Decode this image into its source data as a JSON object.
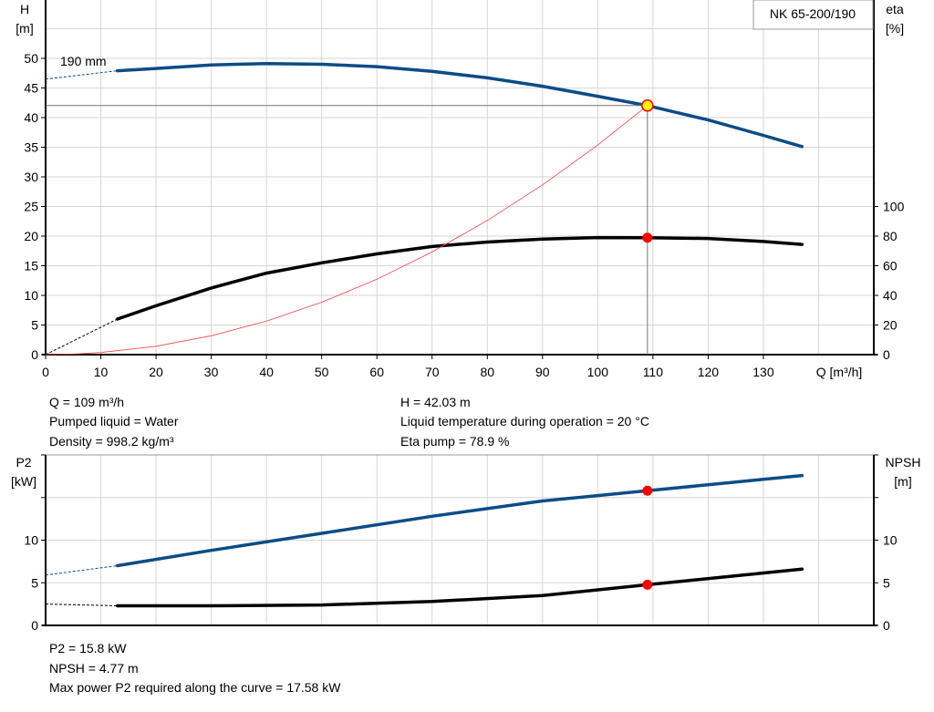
{
  "chart_data": [
    {
      "type": "line",
      "title": "NK 65-200/190",
      "xlabel": "Q [m³/h]",
      "ylabel": "H\n[m]",
      "y2label": "eta\n[%]",
      "xlim": [
        0,
        150
      ],
      "ylim": [
        0,
        60
      ],
      "y2lim": [
        0,
        240
      ],
      "x_ticks": [
        0,
        10,
        20,
        30,
        40,
        50,
        60,
        70,
        80,
        90,
        100,
        110,
        120,
        130
      ],
      "y_ticks": [
        0,
        5,
        10,
        15,
        20,
        25,
        30,
        35,
        40,
        45,
        50
      ],
      "y2_ticks": [
        0,
        20,
        40,
        60,
        80,
        100
      ],
      "grid": true,
      "annotation": "190 mm",
      "colors": {
        "head": "#0b4c86",
        "eta": "#000000",
        "system": "#ff4040",
        "point_fill": "#ffff00",
        "point_stroke": "#ff0000",
        "duty_lines": "#777777"
      },
      "series": [
        {
          "key": "head",
          "axis": "left",
          "x": [
            13,
            20,
            30,
            40,
            50,
            60,
            70,
            80,
            90,
            100,
            109,
            120,
            130,
            137
          ],
          "y": [
            47.9,
            48.3,
            48.9,
            49.1,
            49.0,
            48.6,
            47.8,
            46.7,
            45.3,
            43.6,
            42.03,
            39.6,
            37.0,
            35.1
          ],
          "dashed_x": [
            0,
            13
          ],
          "dashed_y": [
            46.5,
            47.9
          ]
        },
        {
          "key": "eta",
          "axis": "right",
          "x": [
            13,
            20,
            30,
            40,
            50,
            60,
            70,
            80,
            90,
            100,
            109,
            120,
            130,
            137
          ],
          "y": [
            24,
            33,
            45,
            55,
            62,
            68,
            73,
            76,
            78,
            79,
            78.9,
            78.4,
            76.4,
            74.4
          ],
          "dashed_x": [
            0,
            13
          ],
          "dashed_y": [
            0,
            24
          ]
        },
        {
          "key": "system",
          "axis": "left",
          "x": [
            0,
            5,
            10,
            20,
            30,
            40,
            50,
            60,
            70,
            80,
            90,
            100,
            109
          ],
          "y": [
            0,
            0.09,
            0.35,
            1.41,
            3.18,
            5.66,
            8.84,
            12.73,
            17.33,
            22.64,
            28.65,
            35.37,
            42.03
          ]
        }
      ],
      "duty_point": {
        "Q": 109,
        "H": 42.03,
        "eta": 78.9
      }
    },
    {
      "type": "line",
      "ylabel": "P2\n[kW]",
      "y2label": "NPSH\n[m]",
      "xlim": [
        0,
        150
      ],
      "ylim": [
        0,
        20
      ],
      "y_ticks": [
        0,
        5,
        10,
        15,
        20
      ],
      "y_tick_labels": [
        "0",
        "5",
        "10",
        "",
        ""
      ],
      "grid": true,
      "colors": {
        "p2": "#0b4c86",
        "npsh": "#000000",
        "point": "#ff0000"
      },
      "series": [
        {
          "key": "p2",
          "axis": "left",
          "x": [
            13,
            30,
            50,
            70,
            90,
            109,
            137
          ],
          "y": [
            7.0,
            8.8,
            10.8,
            12.8,
            14.6,
            15.8,
            17.58
          ],
          "dashed_x": [
            0,
            13
          ],
          "dashed_y": [
            5.9,
            7.0
          ]
        },
        {
          "key": "npsh",
          "axis": "right",
          "x": [
            13,
            30,
            50,
            70,
            90,
            109,
            137
          ],
          "y": [
            2.3,
            2.3,
            2.4,
            2.8,
            3.5,
            4.77,
            6.6
          ],
          "dashed_x": [
            0,
            13
          ],
          "dashed_y": [
            2.5,
            2.3
          ]
        }
      ],
      "duty_point": {
        "Q": 109,
        "P2": 15.8,
        "NPSH": 4.77
      }
    }
  ],
  "info_top": {
    "q": "Q = 109 m³/h",
    "liquid": "Pumped liquid = Water",
    "density": "Density = 998.2 kg/m³",
    "h": "H = 42.03 m",
    "temp": "Liquid temperature during operation = 20 °C",
    "eta": "Eta pump = 78.9 %"
  },
  "info_bottom": {
    "p2": "P2 = 15.8 kW",
    "npsh": "NPSH = 4.77 m",
    "max_p2": "Max power P2 required along the curve = 17.58 kW"
  }
}
